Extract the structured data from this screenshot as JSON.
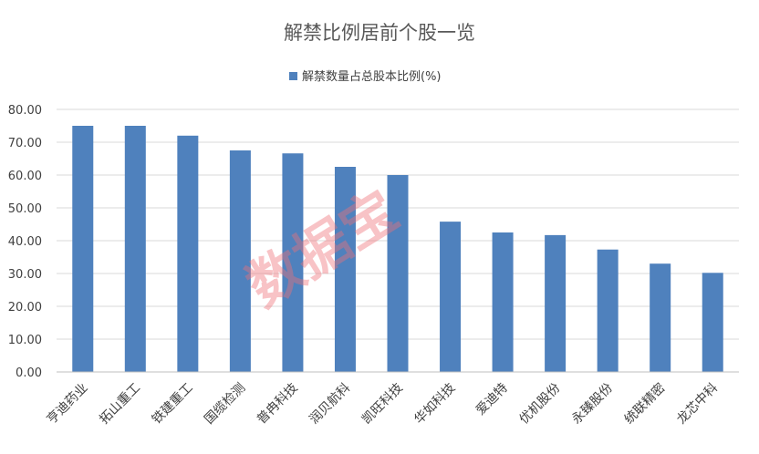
{
  "chart_data": {
    "type": "bar",
    "title": "解禁比例居前个股一览",
    "legend": [
      "解禁数量占总股本比例(%)"
    ],
    "legend_position": "top",
    "categories": [
      "亨迪药业",
      "拓山重工",
      "铁建重工",
      "国缆检测",
      "普冉科技",
      "润贝航科",
      "凯旺科技",
      "华如科技",
      "爱迪特",
      "优机股份",
      "永臻股份",
      "统联精密",
      "龙芯中科"
    ],
    "series": [
      {
        "name": "解禁数量占总股本比例(%)",
        "values": [
          75.0,
          75.0,
          72.0,
          67.5,
          66.6,
          62.5,
          60.0,
          45.8,
          42.5,
          41.7,
          37.3,
          33.0,
          30.2
        ]
      }
    ],
    "ylim": [
      0,
      80
    ],
    "yticks": [
      "0.00",
      "10.00",
      "20.00",
      "30.00",
      "40.00",
      "50.00",
      "60.00",
      "70.00",
      "80.00"
    ],
    "grid": true,
    "bar_color": "#4f81bd"
  },
  "watermark": "数据宝"
}
